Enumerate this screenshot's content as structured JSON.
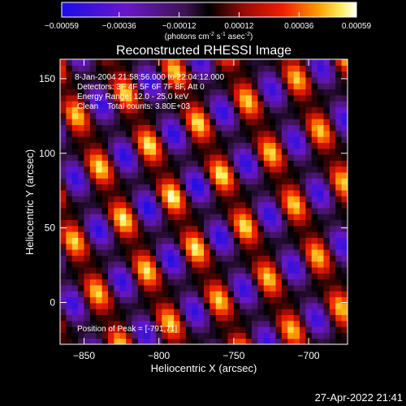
{
  "chart_data": {
    "type": "heatmap",
    "title": "Reconstructed RHESSI Image",
    "xlabel": "Heliocentric X (arcsec)",
    "ylabel": "Heliocentric Y (arcsec)",
    "xlim": [
      -866,
      -674
    ],
    "ylim": [
      -28,
      163
    ],
    "x_ticks": [
      -850,
      -800,
      -750,
      -700
    ],
    "y_ticks": [
      0,
      50,
      100,
      150
    ],
    "colorbar": {
      "range": [
        -0.00059,
        0.00059
      ],
      "ticks": [
        "-0.00059",
        "-0.00036",
        "-0.00012",
        "0.00012",
        "0.00036",
        "0.00059"
      ],
      "unit_label": "(photons cm",
      "unit_exp1": "-2",
      "unit_mid": " s",
      "unit_exp2": "-1",
      "unit_mid2": " asec",
      "unit_exp3": "-2",
      "unit_end": ")"
    },
    "annotations": {
      "time_range": "8-Jan-2004 21:58:56.000 to 22:04:12.000",
      "detectors": "Detectors: 3F 4F 5F 6F 7F 8F, Att 0",
      "energy": "Energy Range: 12.0 - 25.0 keV",
      "clean": "Clean    Total counts: 3.80E+03",
      "peak": "Position of Peak = [-791,71]"
    },
    "peak": [
      -791,
      71
    ],
    "pattern": {
      "stripe_direction": [
        0.91,
        0.41
      ],
      "stripe_period_arcsec": 36,
      "modulation_period_arcsec": 38
    }
  },
  "footer": {
    "timestamp": "27-Apr-2022 21:41"
  }
}
